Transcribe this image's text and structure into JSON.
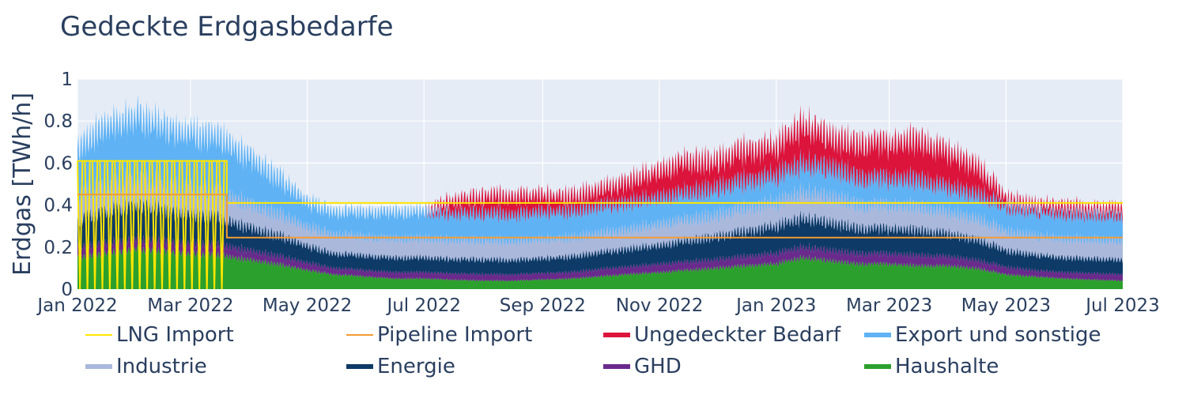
{
  "chart_data": {
    "type": "area",
    "title": "Gedeckte Erdgasbedarfe",
    "xlabel": "",
    "ylabel": "Erdgas [TWh/h]",
    "x_range": [
      "2022-01-01",
      "2023-07-01"
    ],
    "ylim": [
      0,
      1
    ],
    "y_ticks": [
      0,
      0.2,
      0.4,
      0.6,
      0.8,
      1
    ],
    "y_tick_labels": [
      "0",
      "0.2",
      "0.4",
      "0.6",
      "0.8",
      "1"
    ],
    "x_ticks": [
      "2022-01-01",
      "2022-03-01",
      "2022-05-01",
      "2022-07-01",
      "2022-09-01",
      "2022-11-01",
      "2023-01-01",
      "2023-03-01",
      "2023-05-01",
      "2023-07-01"
    ],
    "x_tick_labels": [
      "Jan 2022",
      "Mar 2022",
      "May 2022",
      "Jul 2022",
      "Sep 2022",
      "Nov 2022",
      "Jan 2023",
      "Mar 2023",
      "May 2023",
      "Jul 2023"
    ],
    "grid": true,
    "legend_position": "bottom",
    "x": [
      "2022-01-01",
      "2022-01-15",
      "2022-02-01",
      "2022-02-15",
      "2022-03-01",
      "2022-03-15",
      "2022-04-01",
      "2022-04-15",
      "2022-05-01",
      "2022-05-15",
      "2022-06-01",
      "2022-06-15",
      "2022-07-01",
      "2022-07-15",
      "2022-08-01",
      "2022-08-15",
      "2022-09-01",
      "2022-09-15",
      "2022-10-01",
      "2022-10-15",
      "2022-11-01",
      "2022-11-15",
      "2022-12-01",
      "2022-12-15",
      "2023-01-01",
      "2023-01-15",
      "2023-02-01",
      "2023-02-15",
      "2023-03-01",
      "2023-03-15",
      "2023-04-01",
      "2023-04-15",
      "2023-05-01",
      "2023-05-15",
      "2023-06-01",
      "2023-06-15",
      "2023-07-01"
    ],
    "stack_series": [
      {
        "name": "Haushalte",
        "color": "#2ca02c",
        "values": [
          0.15,
          0.17,
          0.19,
          0.18,
          0.17,
          0.16,
          0.14,
          0.12,
          0.09,
          0.07,
          0.06,
          0.05,
          0.05,
          0.045,
          0.04,
          0.04,
          0.045,
          0.05,
          0.06,
          0.07,
          0.08,
          0.09,
          0.1,
          0.11,
          0.12,
          0.15,
          0.13,
          0.12,
          0.12,
          0.11,
          0.11,
          0.1,
          0.07,
          0.06,
          0.05,
          0.045,
          0.04
        ]
      },
      {
        "name": "GHD",
        "color": "#6a2a8c",
        "values": [
          0.05,
          0.05,
          0.05,
          0.05,
          0.05,
          0.05,
          0.045,
          0.04,
          0.035,
          0.03,
          0.03,
          0.03,
          0.03,
          0.03,
          0.03,
          0.03,
          0.03,
          0.03,
          0.035,
          0.035,
          0.04,
          0.04,
          0.04,
          0.045,
          0.05,
          0.05,
          0.05,
          0.05,
          0.05,
          0.05,
          0.045,
          0.04,
          0.035,
          0.03,
          0.03,
          0.03,
          0.03
        ]
      },
      {
        "name": "Energie",
        "color": "#0d3a66",
        "values": [
          0.13,
          0.15,
          0.16,
          0.15,
          0.14,
          0.13,
          0.11,
          0.1,
          0.08,
          0.07,
          0.07,
          0.07,
          0.07,
          0.07,
          0.07,
          0.07,
          0.07,
          0.075,
          0.08,
          0.085,
          0.09,
          0.1,
          0.11,
          0.12,
          0.13,
          0.14,
          0.13,
          0.12,
          0.12,
          0.12,
          0.11,
          0.1,
          0.08,
          0.075,
          0.07,
          0.07,
          0.07
        ]
      },
      {
        "name": "Industrie",
        "color": "#aab8dc",
        "values": [
          0.12,
          0.12,
          0.12,
          0.12,
          0.12,
          0.12,
          0.11,
          0.1,
          0.09,
          0.09,
          0.09,
          0.09,
          0.09,
          0.09,
          0.09,
          0.09,
          0.09,
          0.09,
          0.09,
          0.09,
          0.1,
          0.1,
          0.1,
          0.11,
          0.11,
          0.12,
          0.12,
          0.11,
          0.11,
          0.11,
          0.1,
          0.1,
          0.09,
          0.09,
          0.09,
          0.09,
          0.09
        ]
      },
      {
        "name": "Export und sonstige",
        "color": "#5fb3f5",
        "values": [
          0.22,
          0.29,
          0.3,
          0.28,
          0.27,
          0.26,
          0.23,
          0.18,
          0.12,
          0.11,
          0.12,
          0.13,
          0.13,
          0.13,
          0.13,
          0.13,
          0.13,
          0.13,
          0.13,
          0.13,
          0.13,
          0.13,
          0.13,
          0.13,
          0.13,
          0.14,
          0.14,
          0.13,
          0.13,
          0.13,
          0.12,
          0.12,
          0.12,
          0.12,
          0.12,
          0.12,
          0.12
        ]
      },
      {
        "name": "Ungedeckter Bedarf",
        "color": "#dc143c",
        "values": [
          0,
          0,
          0,
          0,
          0,
          0,
          0,
          0,
          0,
          0,
          0,
          0,
          0,
          0.06,
          0.08,
          0.09,
          0.08,
          0.07,
          0.08,
          0.1,
          0.13,
          0.15,
          0.13,
          0.15,
          0.14,
          0.19,
          0.14,
          0.17,
          0.17,
          0.19,
          0.17,
          0.14,
          0.04,
          0.03,
          0.04,
          0.03,
          0.04
        ]
      }
    ],
    "line_series": [
      {
        "name": "LNG Import",
        "color": "#ffe600",
        "x": [
          "2022-01-01",
          "2022-03-20",
          "2022-03-20",
          "2023-07-01"
        ],
        "values": [
          0.61,
          0.61,
          0.41,
          0.41
        ],
        "note_pattern": "oscillating"
      },
      {
        "name": "Pipeline Import",
        "color": "#f39c34",
        "x": [
          "2022-01-01",
          "2022-03-20",
          "2022-03-20",
          "2023-07-01"
        ],
        "values": [
          0.45,
          0.45,
          0.245,
          0.245
        ]
      }
    ],
    "legend": [
      {
        "name": "LNG Import",
        "color": "#ffe600",
        "kind": "line"
      },
      {
        "name": "Pipeline Import",
        "color": "#f39c34",
        "kind": "line"
      },
      {
        "name": "Ungedeckter Bedarf",
        "color": "#dc143c",
        "kind": "area"
      },
      {
        "name": "Export und sonstige",
        "color": "#5fb3f5",
        "kind": "area"
      },
      {
        "name": "Industrie",
        "color": "#aab8dc",
        "kind": "area"
      },
      {
        "name": "Energie",
        "color": "#0d3a66",
        "kind": "area"
      },
      {
        "name": "GHD",
        "color": "#6a2a8c",
        "kind": "area"
      },
      {
        "name": "Haushalte",
        "color": "#2ca02c",
        "kind": "area"
      }
    ]
  }
}
